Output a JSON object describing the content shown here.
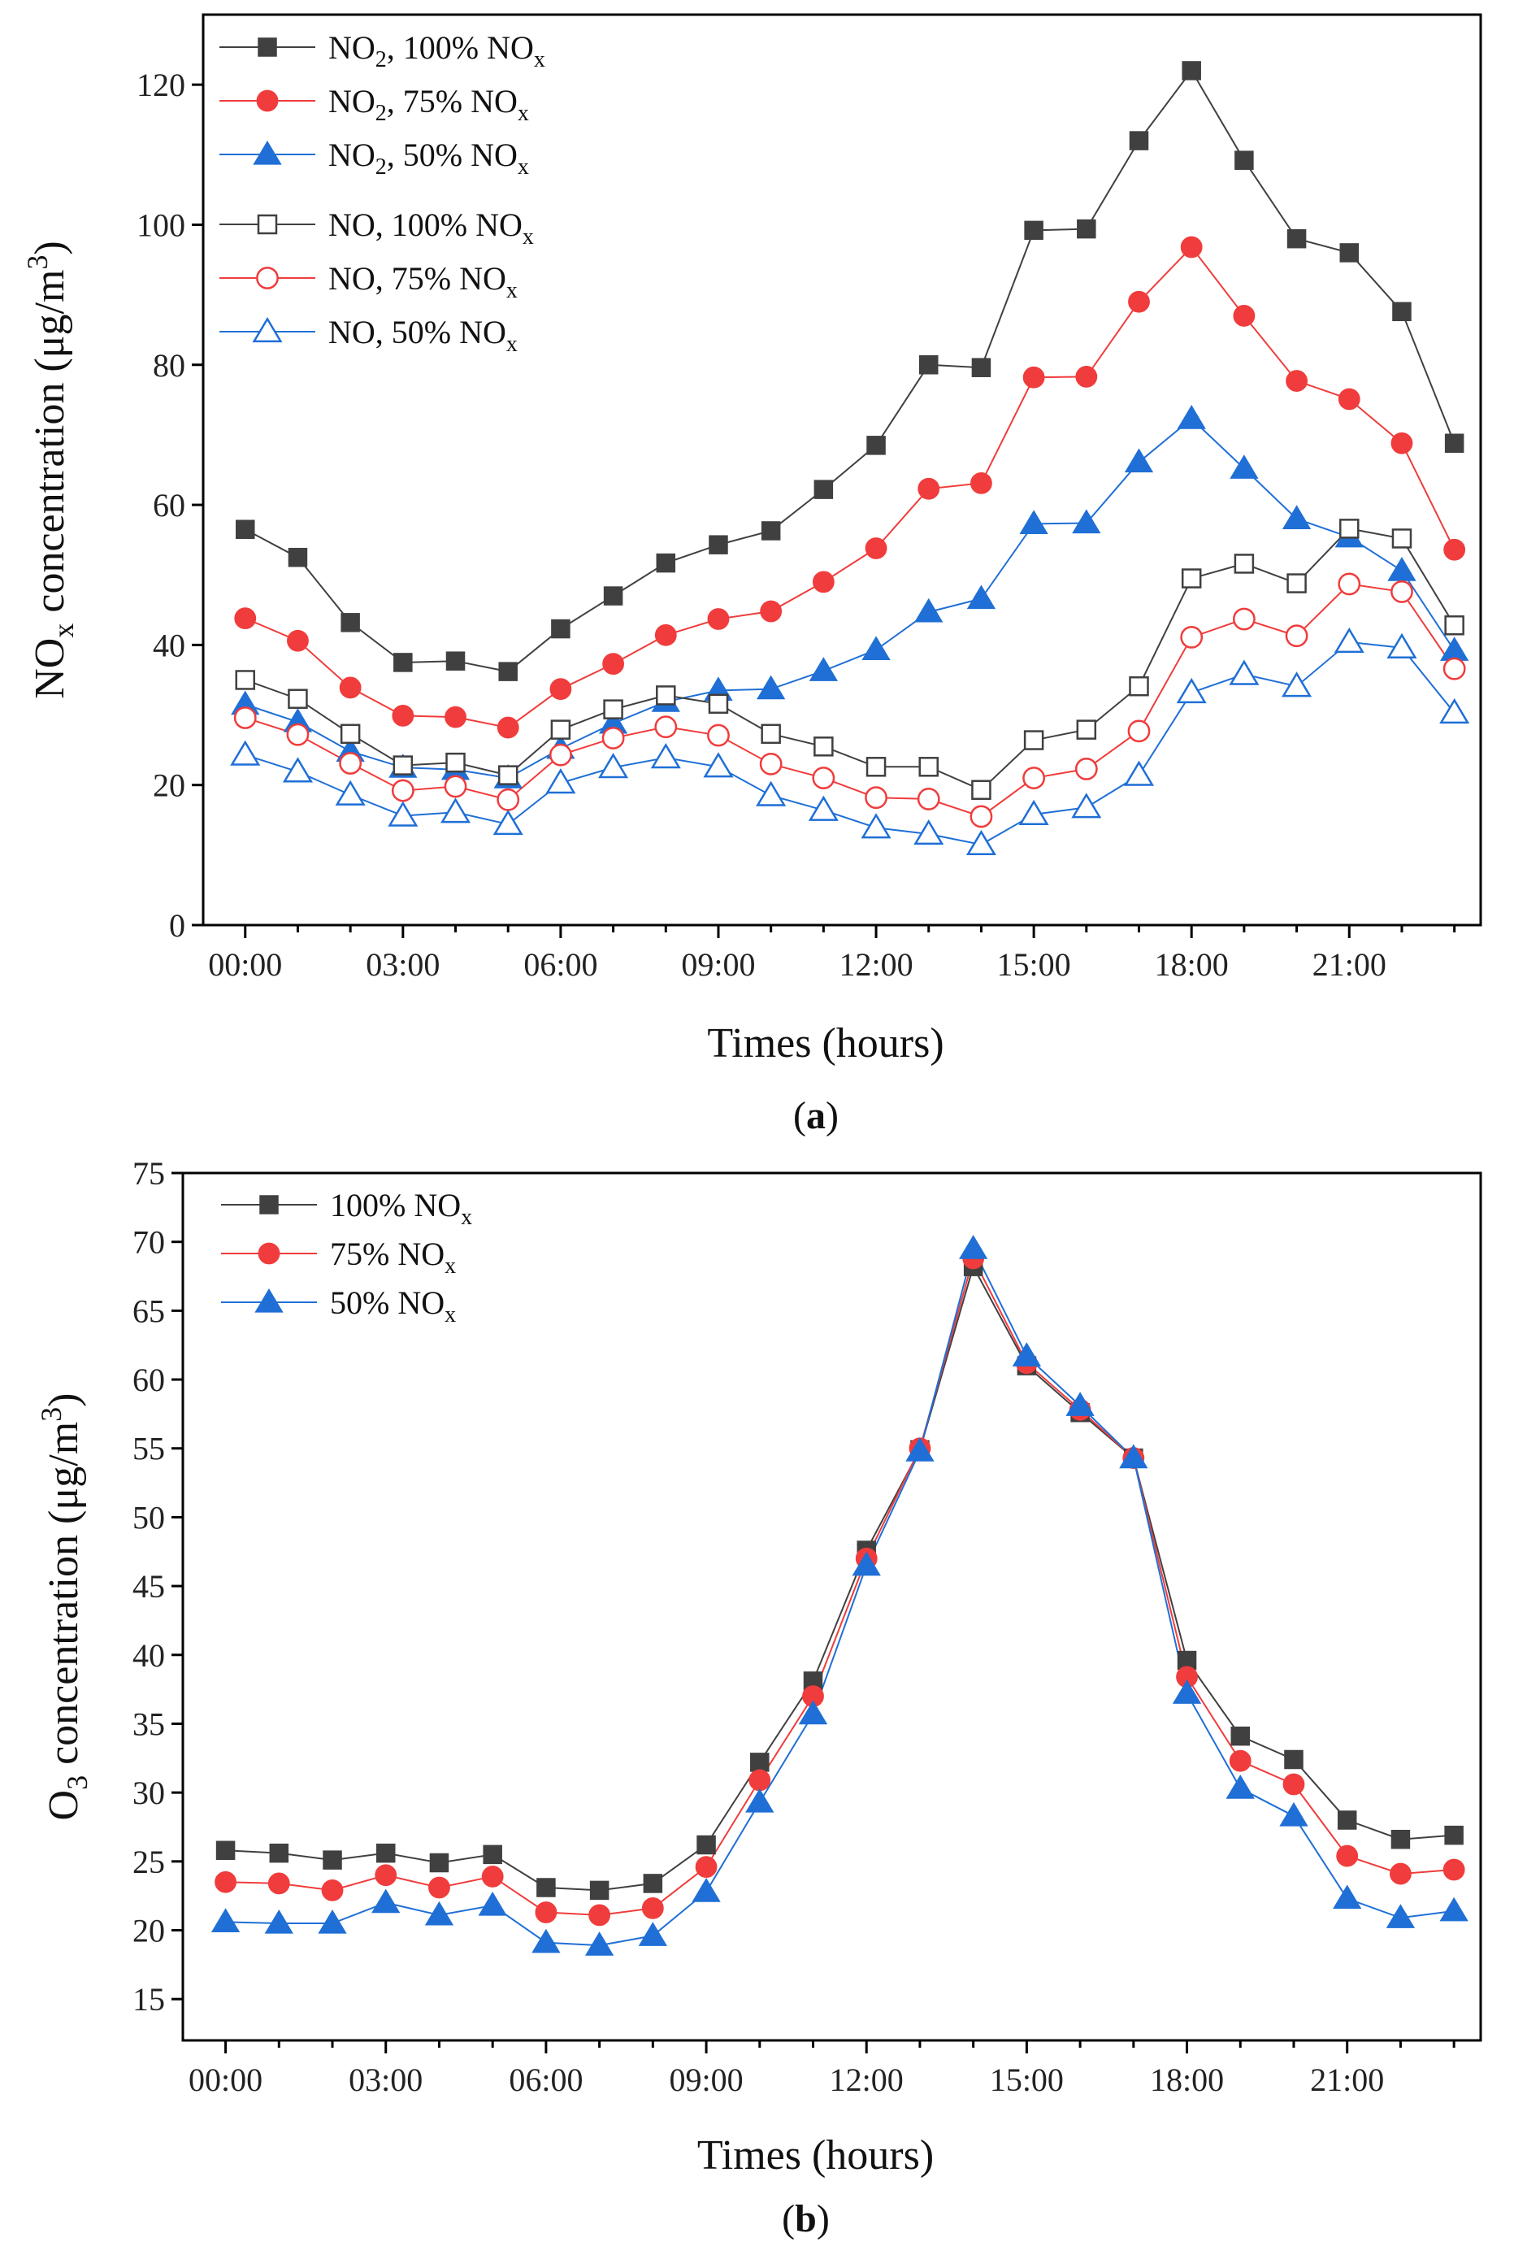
{
  "chart_data": [
    {
      "id": "a",
      "type": "line",
      "caption_open": "(",
      "caption": "a",
      "caption_close": ")",
      "xlabel": "Times (hours)",
      "ylabel_main": "NO",
      "ylabel_sub": "x",
      "ylabel_rest": " concentration (μg/m",
      "ylabel_sup": "3",
      "ylabel_end": ")",
      "ylim": [
        0,
        130
      ],
      "yticks": [
        0,
        20,
        40,
        60,
        80,
        100,
        120
      ],
      "x": [
        0,
        1,
        2,
        3,
        4,
        5,
        6,
        7,
        8,
        9,
        10,
        11,
        12,
        13,
        14,
        15,
        16,
        17,
        18,
        19,
        20,
        21,
        22,
        23
      ],
      "xlim": [
        -0.8,
        23.5
      ],
      "xticks": [
        0,
        3,
        6,
        9,
        12,
        15,
        18,
        21
      ],
      "xtick_labels": [
        "00:00",
        "03:00",
        "06:00",
        "09:00",
        "12:00",
        "15:00",
        "18:00",
        "21:00"
      ],
      "legend_groups": [
        [
          0,
          1,
          2
        ],
        [
          3,
          4,
          5
        ]
      ],
      "series": [
        {
          "label_parts": [
            "NO",
            "2",
            ", 100% NO",
            "x"
          ],
          "color": "#404040",
          "marker": "square",
          "filled": true,
          "values": [
            56.5,
            52.5,
            43.2,
            37.5,
            37.7,
            36.2,
            42.3,
            47,
            51.7,
            54.3,
            56.3,
            62.2,
            68.5,
            80,
            79.6,
            99.2,
            99.4,
            112,
            122,
            109.2,
            98,
            96,
            87.6,
            68.8
          ]
        },
        {
          "label_parts": [
            "NO",
            "2",
            ", 75% NO",
            "x"
          ],
          "color": "#f03c3c",
          "marker": "circle",
          "filled": true,
          "values": [
            43.8,
            40.6,
            33.9,
            29.9,
            29.7,
            28.2,
            33.7,
            37.3,
            41.4,
            43.7,
            44.8,
            49,
            53.8,
            62.3,
            63.1,
            78.2,
            78.3,
            89,
            96.8,
            87,
            77.7,
            75.1,
            68.8,
            53.6
          ]
        },
        {
          "label_parts": [
            "NO",
            "2",
            ", 50% NO",
            "x"
          ],
          "color": "#1f6fd6",
          "marker": "triangle",
          "filled": true,
          "values": [
            31.5,
            29,
            24.8,
            22.5,
            22.2,
            21,
            25.2,
            28.8,
            31.9,
            33.5,
            33.7,
            36.3,
            39.3,
            44.7,
            46.6,
            57.3,
            57.4,
            66.1,
            72.3,
            65.2,
            58,
            55.4,
            50.6,
            39.2
          ]
        },
        {
          "label_parts": [
            "NO, 100% NO",
            "",
            "",
            "x"
          ],
          "color": "#404040",
          "marker": "square",
          "filled": false,
          "values": [
            35,
            32.3,
            27.3,
            22.8,
            23.2,
            21.4,
            27.9,
            30.8,
            32.8,
            31.6,
            27.3,
            25.5,
            22.6,
            22.6,
            19.3,
            26.4,
            27.9,
            34.1,
            49.5,
            51.6,
            48.8,
            56.6,
            55.2,
            42.8
          ]
        },
        {
          "label_parts": [
            "NO, 75% NO",
            "",
            "",
            "x"
          ],
          "color": "#f03c3c",
          "marker": "circle",
          "filled": false,
          "values": [
            29.6,
            27.2,
            23.1,
            19.2,
            19.8,
            17.9,
            24.3,
            26.7,
            28.3,
            27.1,
            23,
            21,
            18.2,
            18,
            15.5,
            21,
            22.3,
            27.7,
            41.1,
            43.7,
            41.3,
            48.7,
            47.6,
            36.6
          ]
        },
        {
          "label_parts": [
            "NO, 50% NO",
            "",
            "",
            "x"
          ],
          "color": "#1f6fd6",
          "marker": "triangle",
          "filled": false,
          "values": [
            24.3,
            21.9,
            18.6,
            15.6,
            16.1,
            14.4,
            20.3,
            22.5,
            23.9,
            22.6,
            18.5,
            16.4,
            13.9,
            13,
            11.5,
            15.8,
            16.8,
            21.4,
            33.2,
            35.8,
            34.1,
            40.4,
            39.6,
            30.3
          ]
        }
      ]
    },
    {
      "id": "b",
      "type": "line",
      "caption_open": "(",
      "caption": "b",
      "caption_close": ")",
      "xlabel": "Times (hours)",
      "ylabel_main": "O",
      "ylabel_sub": "3",
      "ylabel_rest": " concentration (μg/m",
      "ylabel_sup": "3",
      "ylabel_end": ")",
      "ylim": [
        12,
        75
      ],
      "yticks": [
        15,
        20,
        25,
        30,
        35,
        40,
        45,
        50,
        55,
        60,
        65,
        70,
        75
      ],
      "x": [
        0,
        1,
        2,
        3,
        4,
        5,
        6,
        7,
        8,
        9,
        10,
        11,
        12,
        13,
        14,
        15,
        16,
        17,
        18,
        19,
        20,
        21,
        22,
        23
      ],
      "xlim": [
        -0.8,
        23.5
      ],
      "xticks": [
        0,
        3,
        6,
        9,
        12,
        15,
        18,
        21
      ],
      "xtick_labels": [
        "00:00",
        "03:00",
        "06:00",
        "09:00",
        "12:00",
        "15:00",
        "18:00",
        "21:00"
      ],
      "legend_groups": [
        [
          0,
          1,
          2
        ]
      ],
      "series": [
        {
          "label_parts": [
            "100% NO",
            "",
            "",
            "x"
          ],
          "color": "#404040",
          "marker": "square",
          "filled": true,
          "values": [
            25.8,
            25.6,
            25.1,
            25.6,
            24.9,
            25.5,
            23.1,
            22.9,
            23.4,
            26.2,
            32.2,
            38.1,
            47.6,
            54.9,
            68.2,
            61,
            57.6,
            54.3,
            39.6,
            34.1,
            32.4,
            28,
            26.6,
            26.9
          ]
        },
        {
          "label_parts": [
            "75% NO",
            "",
            "",
            "x"
          ],
          "color": "#f03c3c",
          "marker": "circle",
          "filled": true,
          "values": [
            23.5,
            23.4,
            22.9,
            24,
            23.1,
            23.9,
            21.3,
            21.1,
            21.6,
            24.6,
            30.9,
            37,
            47,
            55,
            68.8,
            61.2,
            57.8,
            54.3,
            38.4,
            32.3,
            30.6,
            25.4,
            24.1,
            24.4
          ]
        },
        {
          "label_parts": [
            "50% NO",
            "",
            "",
            "x"
          ],
          "color": "#1f6fd6",
          "marker": "triangle",
          "filled": true,
          "values": [
            20.6,
            20.5,
            20.5,
            22,
            21.1,
            21.8,
            19.1,
            18.9,
            19.6,
            22.8,
            29.3,
            35.7,
            46.5,
            54.8,
            69.5,
            61.7,
            58.1,
            54.3,
            37.2,
            30.3,
            28.3,
            22.3,
            20.9,
            21.4
          ]
        }
      ]
    }
  ]
}
